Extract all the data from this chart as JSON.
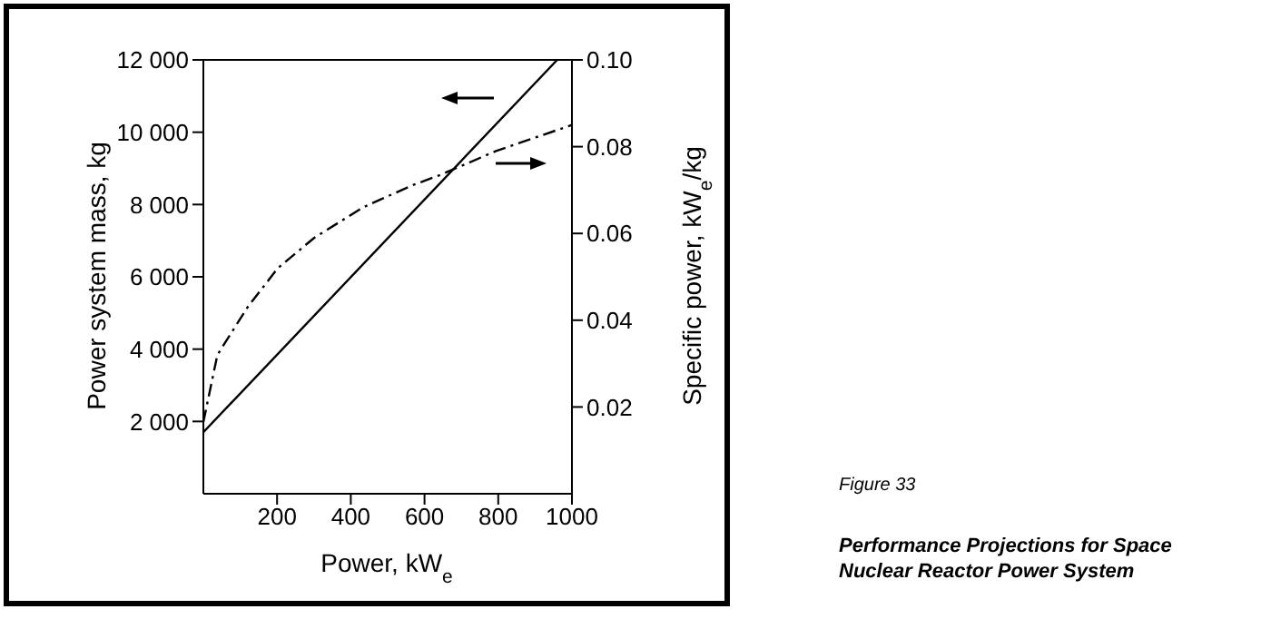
{
  "chart_data": {
    "type": "line",
    "title": "Performance Projections for Space Nuclear Reactor Power System",
    "xlabel": "Power, kW$_{e}$",
    "ylabel": "Power system mass, kg",
    "y2label": "Specific power, kW$_{e}$/kg",
    "annotations": [
      "Figure 33"
    ],
    "xlim": [
      0,
      1000
    ],
    "xticks": [
      200,
      400,
      600,
      800,
      1000
    ],
    "ylim": [
      0,
      12000
    ],
    "yticks": [
      {
        "value": 2000,
        "label": "2 000"
      },
      {
        "value": 4000,
        "label": "4 000"
      },
      {
        "value": 6000,
        "label": "6 000"
      },
      {
        "value": 8000,
        "label": "8 000"
      },
      {
        "value": 10000,
        "label": "10 000"
      },
      {
        "value": 12000,
        "label": "12 000"
      }
    ],
    "y2lim": [
      0,
      0.1
    ],
    "y2ticks": [
      {
        "value": 0.02,
        "label": "0.02"
      },
      {
        "value": 0.04,
        "label": "0.04"
      },
      {
        "value": 0.06,
        "label": "0.06"
      },
      {
        "value": 0.08,
        "label": "0.08"
      },
      {
        "value": 0.1,
        "label": "0.10"
      }
    ],
    "legend": false,
    "marker": "none",
    "series": [
      {
        "color": "#000000",
        "line_style": "solid",
        "x": [
          0,
          960
        ],
        "values": [
          1700,
          12000
        ]
      },
      {
        "color": "#000000",
        "line_style": "dashed",
        "axis": "y2",
        "x": [
          0,
          38,
          120,
          202,
          301,
          433,
          564,
          646,
          794,
          1000
        ],
        "values": [
          0.0165,
          0.032,
          0.043,
          0.052,
          0.059,
          0.066,
          0.071,
          0.0736,
          0.079,
          0.085
        ]
      }
    ]
  }
}
